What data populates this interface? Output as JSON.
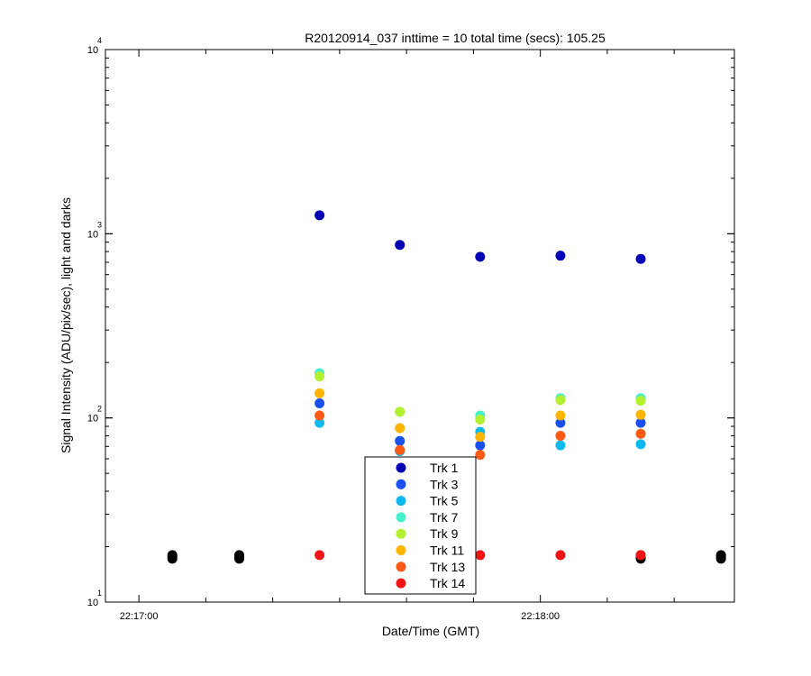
{
  "chart_data": {
    "type": "scatter",
    "title": "R20120914_037 inttime = 10 total time (secs): 105.25",
    "xlabel": "Date/Time (GMT)",
    "ylabel": "Signal Intensity (ADU/pix/sec), light and darks",
    "yscale": "log",
    "ylim": [
      10,
      10000
    ],
    "xlim": [
      "22:16:55",
      "22:18:29"
    ],
    "x_tick_labels": [
      "22:17:00",
      "22:18:00"
    ],
    "y_ticks": [
      {
        "base": "10",
        "exp": "1",
        "value": 10
      },
      {
        "base": "10",
        "exp": "2",
        "value": 100
      },
      {
        "base": "10",
        "exp": "3",
        "value": 1000
      },
      {
        "base": "10",
        "exp": "4",
        "value": 10000
      }
    ],
    "grid": false,
    "legend": "bottom-center",
    "x": [
      "22:17:05",
      "22:17:15",
      "22:17:27",
      "22:17:39",
      "22:17:51",
      "22:18:03",
      "22:18:15",
      "22:18:27"
    ],
    "series": [
      {
        "name": "Trk 1",
        "color": "#0000b4",
        "values": [
          null,
          null,
          1260,
          870,
          750,
          760,
          730,
          null
        ]
      },
      {
        "name": "Trk 3",
        "color": "#1a4ff0",
        "values": [
          null,
          null,
          120,
          75,
          71,
          94,
          94,
          null
        ]
      },
      {
        "name": "Trk 5",
        "color": "#10b8f0",
        "values": [
          null,
          null,
          94,
          66,
          84,
          71,
          72,
          null
        ]
      },
      {
        "name": "Trk 7",
        "color": "#46f0c8",
        "values": [
          null,
          null,
          175,
          108,
          103,
          128,
          128,
          null
        ]
      },
      {
        "name": "Trk 9",
        "color": "#b4f032",
        "values": [
          null,
          null,
          168,
          108,
          98,
          125,
          124,
          null
        ]
      },
      {
        "name": "Trk 11",
        "color": "#ffb400",
        "values": [
          null,
          null,
          136,
          88,
          79,
          103,
          104,
          null
        ]
      },
      {
        "name": "Trk 13",
        "color": "#ff5a14",
        "values": [
          null,
          null,
          103,
          67,
          63,
          80,
          82,
          null
        ]
      },
      {
        "name": "Trk 14",
        "color": "#f01414",
        "values": [
          null,
          null,
          18,
          18,
          18,
          18,
          18,
          null
        ]
      }
    ],
    "darks": {
      "color": "#000000",
      "x": [
        "22:17:05",
        "22:17:15",
        "22:18:15",
        "22:18:27"
      ],
      "y": [
        [
          17.2,
          17.6,
          18.0
        ],
        [
          17.2,
          17.6,
          18.0
        ],
        [
          17.2,
          17.6,
          18.0
        ],
        [
          17.2,
          17.6,
          18.0
        ]
      ]
    }
  }
}
